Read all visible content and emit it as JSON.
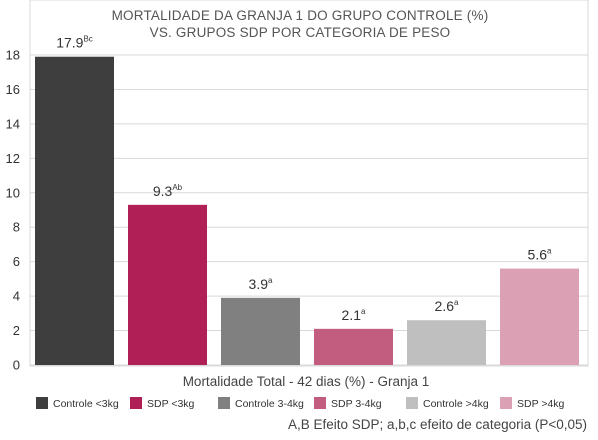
{
  "chart_data": {
    "type": "bar",
    "title": [
      "MORTALIDADE DA GRANJA 1 DO GRUPO CONTROLE (%)",
      "VS. GRUPOS SDP POR CATEGORIA DE PESO"
    ],
    "xlabel": "Mortalidade Total - 42 dias (%) - Granja 1",
    "ylabel": "",
    "ylim": [
      0,
      18
    ],
    "yticks": [
      "0",
      "2",
      "4",
      "6",
      "8",
      "10",
      "12",
      "14",
      "16",
      "18"
    ],
    "grid": true,
    "legend_position": "bottom",
    "categories": [
      "Controle <3kg",
      "SDP <3kg",
      "Controle 3-4kg",
      "SDP 3-4kg",
      "Controle >4kg",
      "SDP >4kg"
    ],
    "values": [
      17.9,
      9.3,
      3.9,
      2.1,
      2.6,
      5.6
    ],
    "labels": [
      {
        "value": "17.9",
        "sup": "Bc"
      },
      {
        "value": "9.3",
        "sup": "Ab"
      },
      {
        "value": "3.9",
        "sup": "a"
      },
      {
        "value": "2.1",
        "sup": "a"
      },
      {
        "value": "2.6",
        "sup": "a"
      },
      {
        "value": "5.6",
        "sup": "a"
      }
    ],
    "colors": [
      "#3f3e3e",
      "#b01f55",
      "#808080",
      "#c25d80",
      "#bfbfbf",
      "#dba0b4"
    ],
    "footnote": "A,B Efeito SDP; a,b,c efeito de categoria (P<0,05)"
  }
}
